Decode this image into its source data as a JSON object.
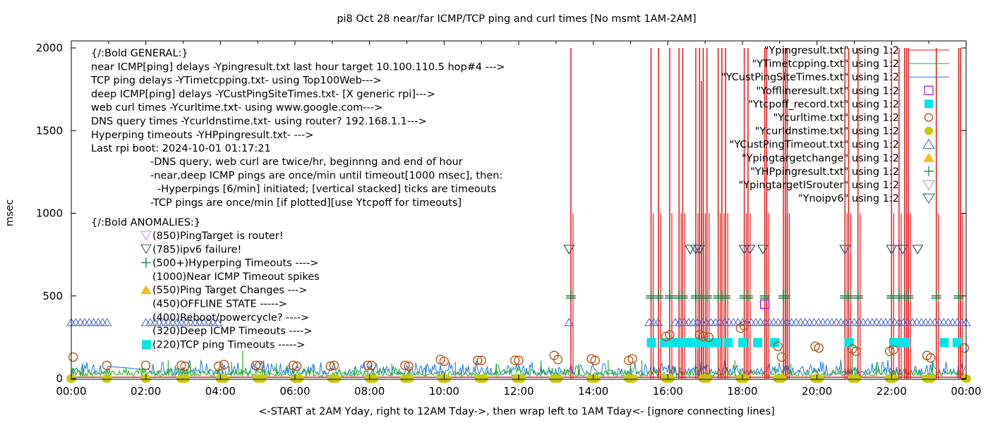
{
  "chart_data": {
    "type": "line",
    "title": "pi8 Oct 28  near/far ICMP/TCP ping and curl times [No msmt  1AM-2AM]",
    "xlabel": "<-START at 2AM Yday, right to 12AM Tday->, then wrap left to 1AM Tday<- [ignore connecting lines]",
    "ylabel": "msec",
    "xlim": [
      0,
      24
    ],
    "ylim": [
      0,
      2000
    ],
    "x_ticks": [
      "00:00",
      "02:00",
      "04:00",
      "06:00",
      "08:00",
      "10:00",
      "12:00",
      "14:00",
      "16:00",
      "18:00",
      "20:00",
      "22:00",
      "00:00"
    ],
    "y_ticks": [
      "0",
      "500",
      "1000",
      "1500",
      "2000"
    ],
    "y_tick_values": [
      0,
      500,
      1000,
      1500,
      2000
    ],
    "grid": false,
    "legend_position": "top-right",
    "legend": [
      {
        "label": "\"Ypingresult.txt\" using 1:2",
        "style": "line",
        "color": "#e41a1c"
      },
      {
        "label": "\"YTimetcpping.txt\" using 1:2",
        "style": "line",
        "color": "#20b020"
      },
      {
        "label": "\"YCustPingSiteTimes.txt\" using 1:2",
        "style": "line",
        "color": "#1a7ae0"
      },
      {
        "label": "\"Yofflineresult.txt\" using 1:2",
        "style": "open-square",
        "color": "#aa22dd"
      },
      {
        "label": "\"Ytcpoff_record.txt\" using 1:2",
        "style": "filled-square",
        "color": "#00e5e5"
      },
      {
        "label": "\"Ycurltime.txt\" using 1:2",
        "style": "open-circle",
        "color": "#b84a0a"
      },
      {
        "label": "\"Ycurldnstime.txt\" using 1:2",
        "style": "filled-circle",
        "color": "#c8c800"
      },
      {
        "label": "\"YCustPingTimeout.txt\" using 1:2",
        "style": "open-triangle-up",
        "color": "#4466cc"
      },
      {
        "label": "\"Ypingtargetchange\" using 1:2",
        "style": "filled-triangle-up",
        "color": "#ffbb22"
      },
      {
        "label": "\"YHPpingresult.txt\" using 1:2",
        "style": "plus",
        "color": "#157a3a"
      },
      {
        "label": "\"YpingtargetISrouter\" using 1:2",
        "style": "open-triangle-down",
        "color": "#bb88ee"
      },
      {
        "label": "\"Ynoipv6\" using 1:2",
        "style": "open-triangle-down",
        "color": "#2a5870"
      }
    ],
    "annotations": {
      "general_header": "{/:Bold GENERAL:}",
      "general_lines": [
        "near ICMP[ping] delays -Ypingresult.txt last hour target 10.100.110.5 hop#4 --->",
        "TCP ping delays -YTimetcpping.txt- using Top100Web--->",
        "deep ICMP[ping] delays -YCustPingSiteTimes.txt- [X generic rpi]--->",
        "web curl times -Ycurltime.txt- using www.google.com--->",
        "DNS query times -Ycurldnstime.txt- using router? 192.168.1.1--->",
        "Hyperping timeouts -YHPpingresult.txt- --->",
        "Last rpi boot: 2024-10-01 01:17:21"
      ],
      "notes": [
        "-DNS query, web curl are twice/hr, beginnng and end of hour",
        "-near,deep ICMP pings are once/min until timeout[1000 msec], then:",
        "  -Hyperpings [6/min] initiated; [vertical stacked] ticks are timeouts",
        "-TCP pings are once/min [if plotted][use Ytcpoff for timeouts]"
      ],
      "anomalies_header": "{/:Bold ANOMALIES:}",
      "anomalies": [
        {
          "marker": "open-triangle-down-violet",
          "text": "(850)PingTarget is router!"
        },
        {
          "marker": "open-triangle-down-teal",
          "text": "(785)ipv6 failure!"
        },
        {
          "marker": "plus",
          "text": "(500+)Hyperping Timeouts ---->"
        },
        {
          "marker": "none",
          "text": "(1000)Near ICMP Timeout spikes"
        },
        {
          "marker": "filled-triangle-up",
          "text": "(550)Ping Target Changes --->"
        },
        {
          "marker": "none",
          "text": "(450)OFFLINE STATE ----->"
        },
        {
          "marker": "none",
          "text": "(400)Reboot/powercycle? ---->"
        },
        {
          "marker": "none",
          "text": "(320)Deep ICMP Timeouts ---->"
        },
        {
          "marker": "filled-square",
          "text": "(220)TCP ping Timeouts ----->"
        }
      ]
    },
    "series": [
      {
        "name": "Ypingresult.txt (near ICMP timeout spikes to 1000+)",
        "x": [
          13.4,
          15.55,
          15.75,
          16.05,
          16.3,
          16.4,
          16.75,
          16.85,
          16.9,
          16.95,
          17.05,
          17.35,
          17.45,
          17.55,
          18.05,
          18.15,
          18.6,
          18.65,
          19.1,
          19.15,
          19.2,
          20.75,
          20.85,
          21.1,
          22.0,
          22.2,
          22.35,
          22.4,
          22.45,
          23.2,
          23.8,
          23.85
        ],
        "y": [
          2000,
          2000,
          2000,
          2000,
          2000,
          2000,
          2000,
          2000,
          1800,
          2000,
          2000,
          2000,
          2000,
          2000,
          2000,
          2000,
          2000,
          2000,
          2000,
          2000,
          2000,
          2000,
          2000,
          2000,
          2000,
          2000,
          2000,
          2000,
          2000,
          2000,
          2000,
          2000
        ]
      },
      {
        "name": "YHPpingresult.txt (hyperping timeouts)",
        "x": [
          13.4,
          15.55,
          15.75,
          16.05,
          16.3,
          16.4,
          16.75,
          16.85,
          17.05,
          17.35,
          17.45,
          17.55,
          18.05,
          18.15,
          18.6,
          19.1,
          19.15,
          20.75,
          20.85,
          21.1,
          22.0,
          22.2,
          22.35,
          22.45,
          23.2,
          23.8
        ],
        "y": [
          500,
          500,
          500,
          500,
          500,
          500,
          500,
          500,
          500,
          500,
          500,
          500,
          500,
          500,
          500,
          500,
          500,
          500,
          500,
          500,
          500,
          500,
          500,
          500,
          500,
          500
        ]
      },
      {
        "name": "Ynoipv6",
        "x": [
          13.35,
          16.6,
          16.75,
          16.85,
          18.05,
          18.2,
          18.55,
          20.75,
          22.0,
          22.3,
          22.7
        ],
        "y": [
          785,
          785,
          785,
          785,
          785,
          785,
          785,
          785,
          785,
          785,
          785
        ]
      },
      {
        "name": "Yofflineresult.txt",
        "x": [
          18.6
        ],
        "y": [
          450
        ]
      },
      {
        "name": "Ytcpoff_record.txt",
        "x": [
          15.55,
          15.9,
          16.1,
          16.3,
          16.5,
          16.7,
          16.9,
          17.1,
          17.3,
          17.6,
          18.0,
          18.4,
          18.85,
          20.85,
          22.05,
          22.2,
          22.35,
          23.4,
          23.75
        ],
        "y": [
          220,
          220,
          220,
          220,
          220,
          220,
          220,
          220,
          220,
          220,
          220,
          220,
          220,
          220,
          220,
          220,
          220,
          220,
          220
        ]
      },
      {
        "name": "YCustPingTimeout.txt (segments at 320)",
        "segments": [
          [
            0.0,
            1.0
          ],
          [
            2.0,
            4.0
          ],
          [
            13.35,
            13.45
          ],
          [
            15.5,
            15.8
          ],
          [
            16.2,
            24.0
          ]
        ],
        "y": 320
      },
      {
        "name": "Ycurltime.txt",
        "x": [
          0.05,
          0.95,
          2.0,
          2.95,
          3.05,
          3.95,
          4.1,
          4.95,
          5.05,
          5.95,
          6.05,
          6.95,
          7.05,
          7.95,
          8.05,
          8.95,
          9.05,
          9.9,
          10.0,
          10.9,
          11.0,
          11.9,
          12.0,
          12.95,
          13.05,
          13.95,
          14.05,
          14.95,
          15.05,
          15.95,
          16.05,
          16.85,
          16.95,
          17.1,
          17.95,
          18.05,
          18.95,
          19.05,
          19.95,
          20.05,
          20.95,
          21.05,
          21.95,
          22.05,
          22.95,
          23.05,
          23.95
        ],
        "y": [
          130,
          80,
          80,
          80,
          75,
          75,
          85,
          80,
          80,
          80,
          75,
          75,
          80,
          80,
          80,
          80,
          75,
          115,
          105,
          110,
          110,
          110,
          110,
          140,
          115,
          120,
          110,
          110,
          120,
          255,
          265,
          265,
          255,
          250,
          305,
          320,
          195,
          130,
          195,
          185,
          180,
          165,
          165,
          175,
          140,
          125,
          185
        ]
      },
      {
        "name": "Ycurldnstime.txt",
        "x": [
          0.0,
          0.95,
          2.0,
          2.95,
          3.05,
          4.0,
          4.1,
          5.0,
          5.1,
          6.0,
          6.1,
          7.0,
          7.1,
          8.0,
          8.1,
          8.95,
          9.05,
          9.95,
          10.05,
          10.95,
          11.05,
          11.95,
          12.05,
          12.95,
          13.05,
          13.95,
          14.05,
          14.95,
          15.05,
          15.95,
          16.05,
          16.95,
          17.05,
          17.95,
          18.05,
          18.95,
          19.05,
          19.95,
          20.05,
          20.95,
          21.05,
          21.95,
          22.05,
          22.95,
          23.05,
          24.0
        ],
        "y": [
          0,
          0,
          0,
          0,
          0,
          0,
          0,
          0,
          0,
          0,
          0,
          0,
          0,
          0,
          0,
          0,
          0,
          0,
          0,
          0,
          0,
          0,
          0,
          0,
          0,
          0,
          0,
          0,
          0,
          0,
          0,
          0,
          0,
          0,
          0,
          0,
          0,
          0,
          0,
          0,
          0,
          0,
          0,
          0,
          0,
          0
        ]
      },
      {
        "name": "YTimetcpping.txt (baseline ~20 with spikes)",
        "baseline": 20,
        "spikes_x": [
          0.3,
          1.9,
          2.6,
          3.2,
          4.3,
          4.6,
          5.5,
          6.5,
          7.6,
          8.6,
          9.5,
          10.3,
          11.4,
          12.6,
          13.6,
          14.4,
          15.0,
          15.3,
          16.8,
          17.8,
          19.3,
          20.85,
          20.95,
          21.6,
          22.4,
          23.1
        ],
        "spikes_y": [
          80,
          70,
          110,
          90,
          100,
          170,
          90,
          80,
          70,
          90,
          80,
          100,
          90,
          110,
          90,
          110,
          90,
          110,
          170,
          110,
          90,
          200,
          180,
          100,
          110,
          90
        ]
      },
      {
        "name": "YCustPingSiteTimes.txt (baseline ~30)",
        "baseline": 30
      },
      {
        "name": "Ypingresult.txt baseline",
        "baseline": 10
      }
    ]
  }
}
